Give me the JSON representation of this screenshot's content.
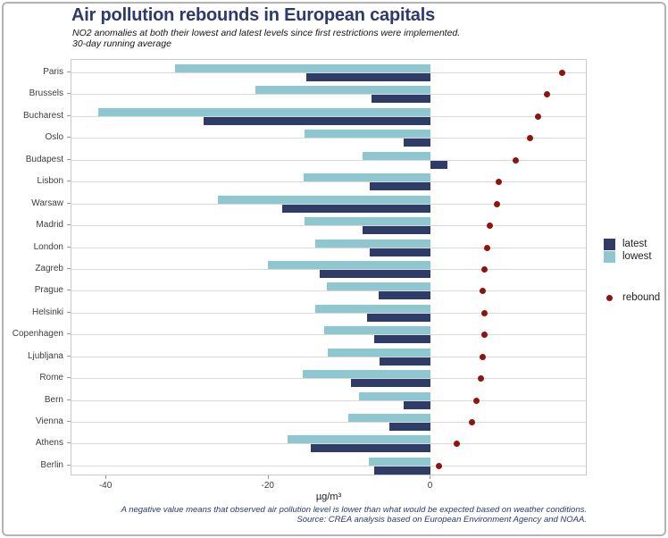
{
  "chart_data": {
    "type": "bar",
    "orientation": "horizontal",
    "title": "Air pollution rebounds in European capitals",
    "subtitle": [
      "NO2 anomalies at both their lowest and latest levels since first restrictions were implemented.",
      "30-day running average"
    ],
    "xlabel": "µg/m³",
    "x_ticks": [
      -40,
      -20,
      0
    ],
    "xlim": [
      -44.3,
      19.1
    ],
    "grid": "horizontal",
    "legend_position": "right",
    "legend": {
      "latest": "latest",
      "lowest": "lowest",
      "rebound": "rebound"
    },
    "categories": [
      "Paris",
      "Brussels",
      "Bucharest",
      "Oslo",
      "Budapest",
      "Lisbon",
      "Warsaw",
      "Madrid",
      "London",
      "Zagreb",
      "Prague",
      "Helsinki",
      "Copenhagen",
      "Ljubljana",
      "Rome",
      "Bern",
      "Vienna",
      "Athens",
      "Berlin"
    ],
    "series": [
      {
        "name": "latest",
        "type": "bar",
        "color": "#2f3c67",
        "values": [
          -15.3,
          -7.3,
          -28.0,
          -3.4,
          2.0,
          -7.5,
          -18.3,
          -8.4,
          -7.5,
          -13.7,
          -6.4,
          -7.9,
          -7.0,
          -6.3,
          -9.9,
          -3.3,
          -5.1,
          -14.8,
          -7.0
        ]
      },
      {
        "name": "lowest",
        "type": "bar",
        "color": "#8fc7d1",
        "values": [
          -31.5,
          -21.6,
          -41.0,
          -15.6,
          -8.4,
          -15.7,
          -26.3,
          -15.6,
          -14.2,
          -20.1,
          -12.8,
          -14.2,
          -13.2,
          -12.7,
          -15.8,
          -8.9,
          -10.2,
          -17.7,
          -7.7
        ]
      },
      {
        "name": "rebound",
        "type": "point",
        "color": "#8e1411",
        "values": [
          16.2,
          14.3,
          13.2,
          12.2,
          10.5,
          8.4,
          8.2,
          7.3,
          6.9,
          6.6,
          6.4,
          6.6,
          6.6,
          6.4,
          6.2,
          5.6,
          5.1,
          3.2,
          1.0
        ]
      }
    ],
    "notes": [
      "A negative value means that observed air pollution level is lower than what would be expected based on weather conditions.",
      "Source: CREA analysis based on European Environment Agency and NOAA."
    ],
    "colors": {
      "title": "#2c3a6e",
      "gridline": "#d9d9d9",
      "panel_border": "#c9c9c9",
      "axis_text": "#3d3d3d"
    }
  }
}
